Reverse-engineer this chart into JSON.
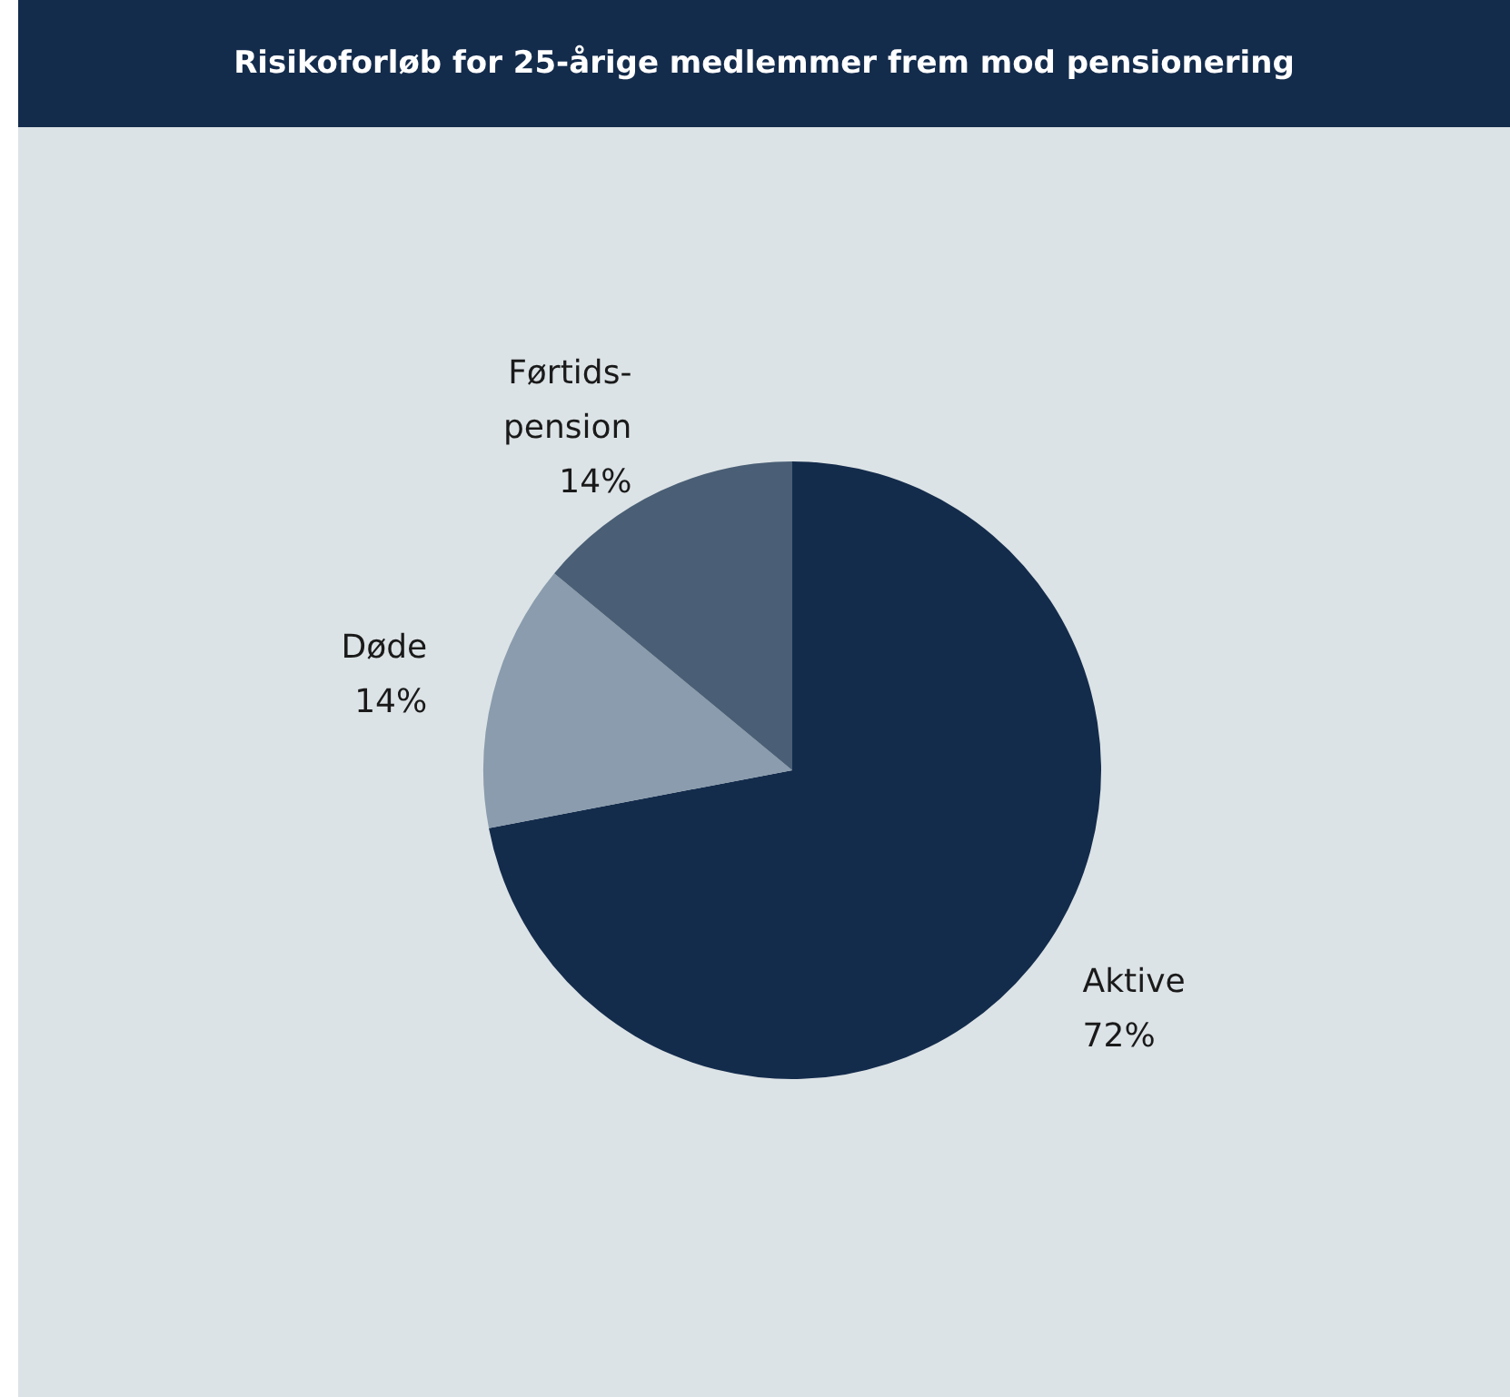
{
  "chart_data": {
    "type": "pie",
    "title": "Risikoforløb for 25-årige medlemmer frem mod pensionering",
    "categories": [
      "Aktive",
      "Døde",
      "Førtids-pension"
    ],
    "values": [
      72,
      14,
      14
    ],
    "colors": [
      "#142c4c",
      "#8a9cad",
      "#4a5f75"
    ],
    "value_labels": [
      "72%",
      "14%",
      "14%"
    ],
    "legend": false
  }
}
